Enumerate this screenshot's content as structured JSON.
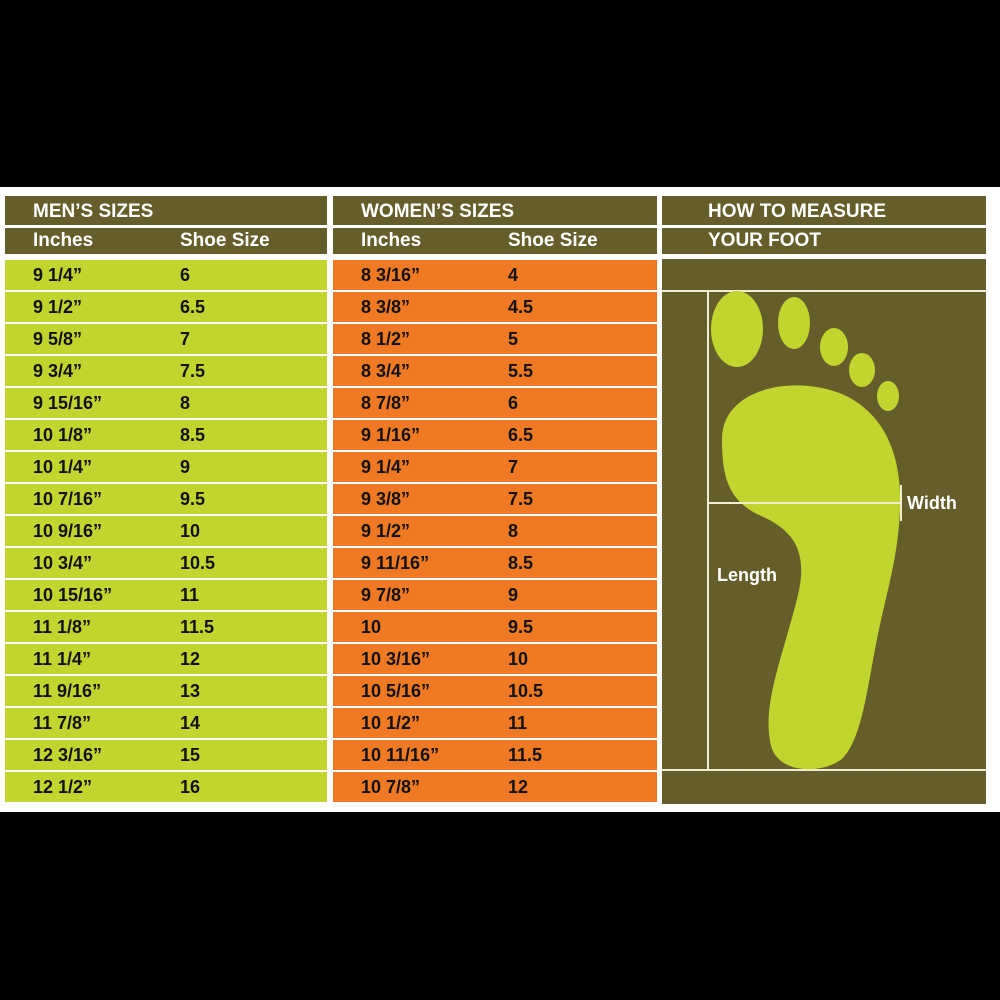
{
  "colors": {
    "header": "#665e2a",
    "men_rows": "#c2d52f",
    "women_rows": "#ef7a23",
    "foot": "#c2d52f"
  },
  "men": {
    "title": "MEN’S SIZES",
    "col1": "Inches",
    "col2": "Shoe Size",
    "rows": [
      [
        "9 1/4”",
        "6"
      ],
      [
        "9 1/2”",
        "6.5"
      ],
      [
        "9 5/8”",
        "7"
      ],
      [
        "9 3/4”",
        "7.5"
      ],
      [
        "9 15/16”",
        "8"
      ],
      [
        "10 1/8”",
        "8.5"
      ],
      [
        "10 1/4”",
        "9"
      ],
      [
        "10 7/16”",
        "9.5"
      ],
      [
        "10 9/16”",
        "10"
      ],
      [
        "10 3/4”",
        "10.5"
      ],
      [
        "10 15/16”",
        "11"
      ],
      [
        "11 1/8”",
        "11.5"
      ],
      [
        "11 1/4”",
        "12"
      ],
      [
        "11 9/16”",
        "13"
      ],
      [
        "11 7/8”",
        "14"
      ],
      [
        "12 3/16”",
        "15"
      ],
      [
        "12 1/2”",
        "16"
      ]
    ]
  },
  "women": {
    "title": "WOMEN’S SIZES",
    "col1": "Inches",
    "col2": "Shoe Size",
    "rows": [
      [
        "8 3/16”",
        "4"
      ],
      [
        "8 3/8”",
        "4.5"
      ],
      [
        "8 1/2”",
        "5"
      ],
      [
        "8 3/4”",
        "5.5"
      ],
      [
        "8 7/8”",
        "6"
      ],
      [
        "9 1/16”",
        "6.5"
      ],
      [
        "9 1/4”",
        "7"
      ],
      [
        "9 3/8”",
        "7.5"
      ],
      [
        "9 1/2”",
        "8"
      ],
      [
        "9 11/16”",
        "8.5"
      ],
      [
        "9 7/8”",
        "9"
      ],
      [
        "10",
        "9.5"
      ],
      [
        "10 3/16”",
        "10"
      ],
      [
        "10 5/16”",
        "10.5"
      ],
      [
        "10 1/2”",
        "11"
      ],
      [
        "10 11/16”",
        "11.5"
      ],
      [
        "10 7/8”",
        "12"
      ]
    ]
  },
  "measure": {
    "title_line1": "HOW TO MEASURE",
    "title_line2": "YOUR FOOT",
    "width_label": "Width",
    "length_label": "Length",
    "icon": "foot-outline-icon"
  }
}
